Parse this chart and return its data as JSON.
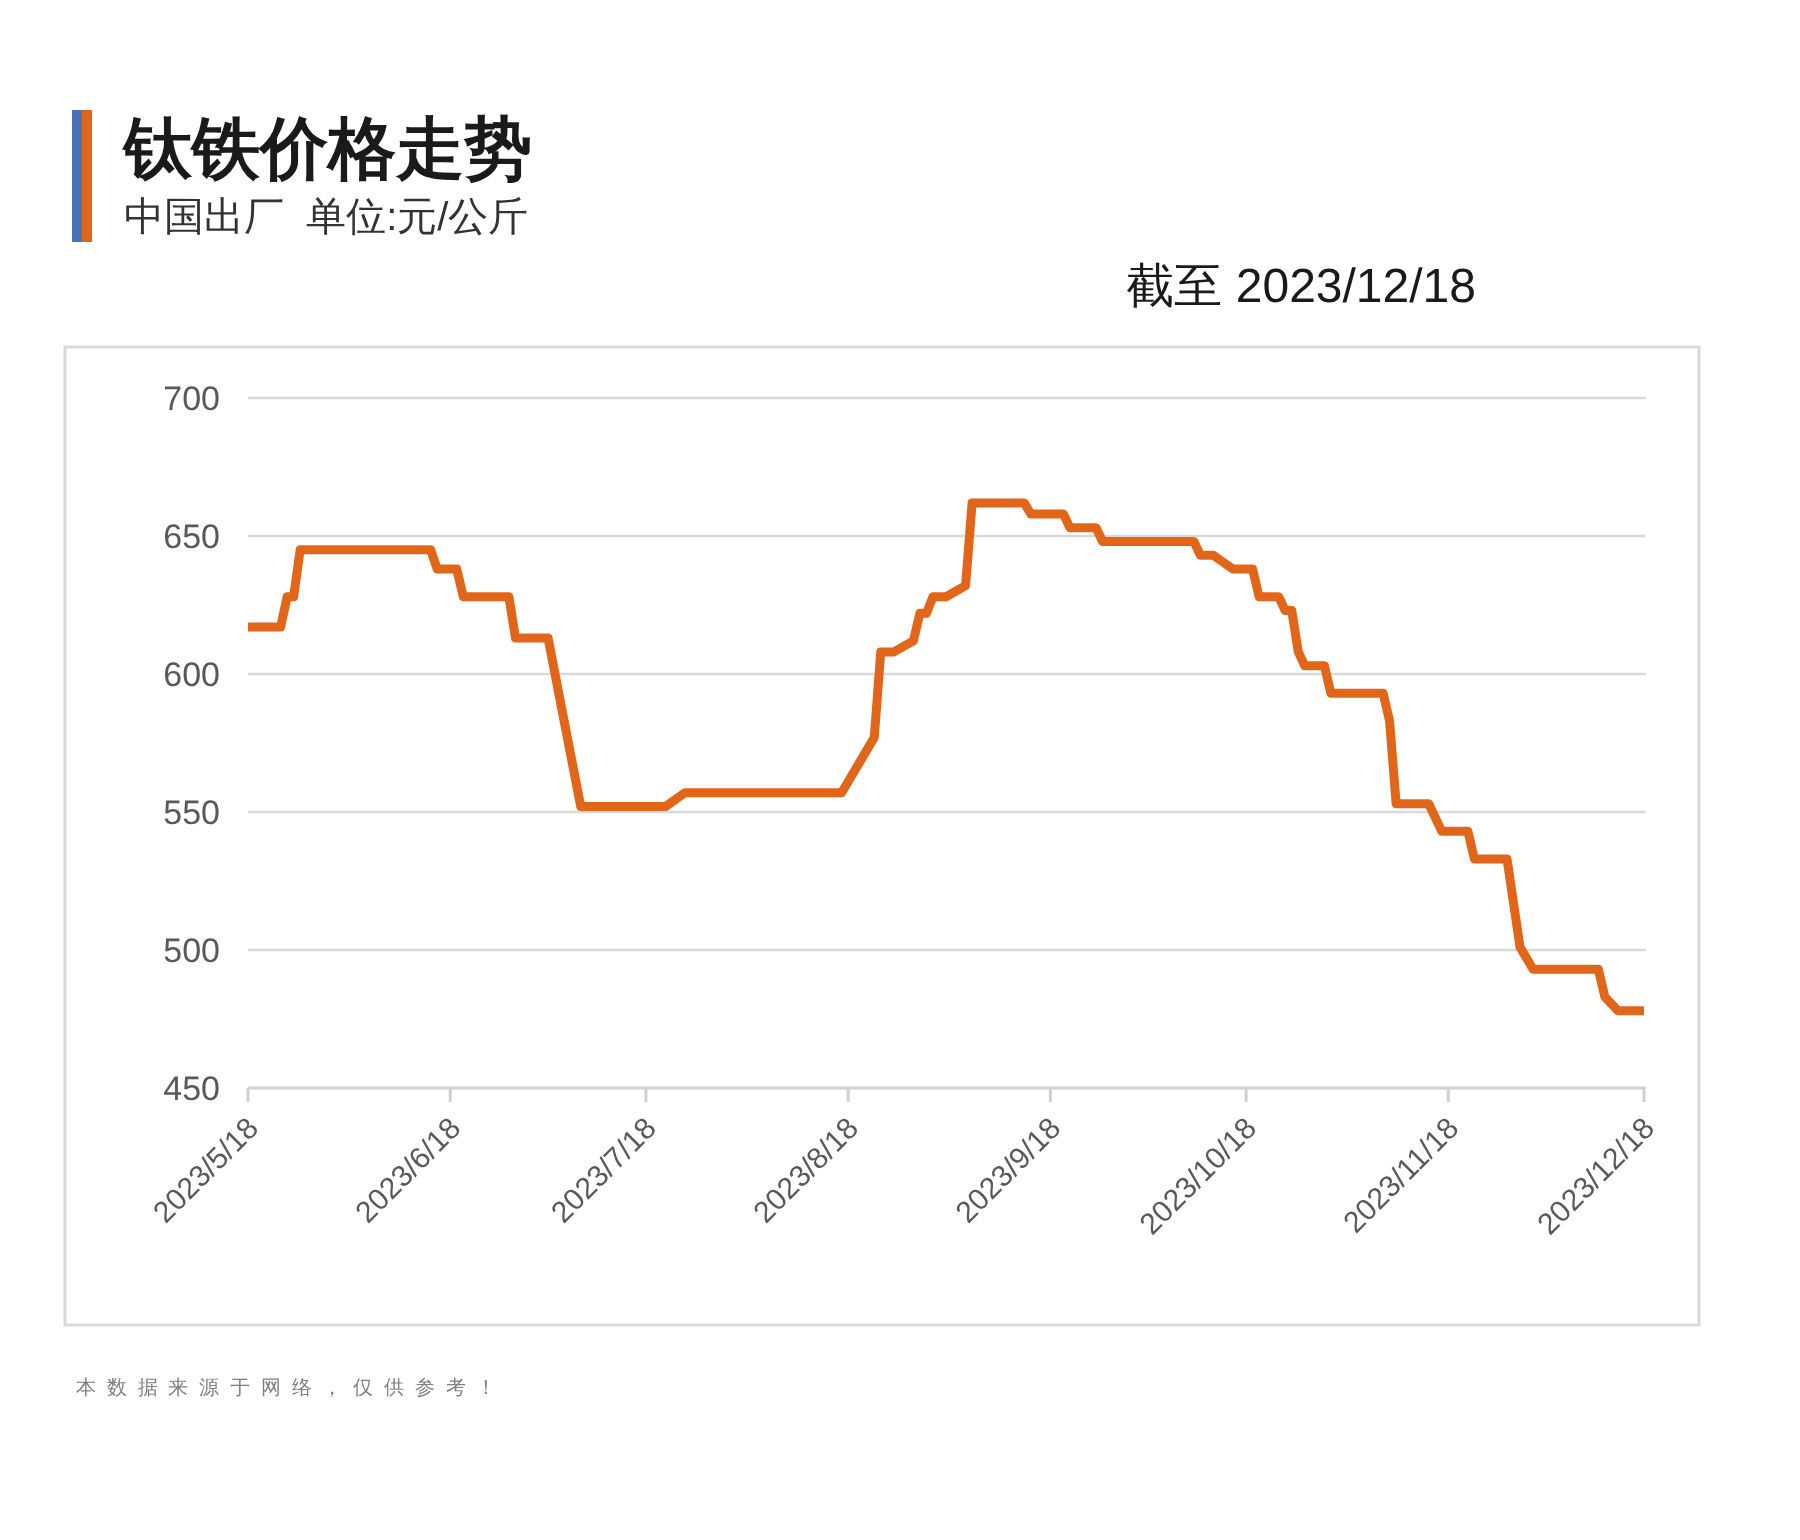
{
  "chart_data": {
    "type": "line",
    "title": "钛铁价格走势",
    "subtitle": "中国出厂  单位:元/公斤",
    "annotations": [
      "截至 2023/12/18",
      "本数据来源于网络，仅供参考！"
    ],
    "x": [
      "2023-05-18",
      "2023-05-23",
      "2023-05-24",
      "2023-05-25",
      "2023-05-26",
      "2023-06-15",
      "2023-06-16",
      "2023-06-19",
      "2023-06-20",
      "2023-06-27",
      "2023-06-28",
      "2023-07-03",
      "2023-07-08",
      "2023-07-21",
      "2023-07-24",
      "2023-08-17",
      "2023-08-22",
      "2023-08-23",
      "2023-08-25",
      "2023-08-28",
      "2023-08-29",
      "2023-08-30",
      "2023-08-31",
      "2023-09-02",
      "2023-09-05",
      "2023-09-06",
      "2023-09-14",
      "2023-09-15",
      "2023-09-20",
      "2023-09-21",
      "2023-09-25",
      "2023-09-26",
      "2023-10-10",
      "2023-10-11",
      "2023-10-13",
      "2023-10-16",
      "2023-10-19",
      "2023-10-20",
      "2023-10-23",
      "2023-10-24",
      "2023-10-25",
      "2023-10-26",
      "2023-10-27",
      "2023-10-30",
      "2023-10-31",
      "2023-11-08",
      "2023-11-09",
      "2023-11-10",
      "2023-11-15",
      "2023-11-17",
      "2023-11-21",
      "2023-11-22",
      "2023-11-27",
      "2023-11-29",
      "2023-12-01",
      "2023-12-11",
      "2023-12-12",
      "2023-12-14",
      "2023-12-18"
    ],
    "series": [
      {
        "color": "#e2661a",
        "values": [
          617,
          617,
          628,
          628,
          645,
          645,
          638,
          638,
          628,
          628,
          613,
          613,
          552,
          552,
          557,
          557,
          577,
          608,
          608,
          612,
          622,
          622,
          628,
          628,
          632,
          662,
          662,
          658,
          658,
          653,
          653,
          648,
          648,
          643,
          643,
          638,
          638,
          628,
          628,
          623,
          623,
          608,
          603,
          603,
          593,
          593,
          583,
          553,
          553,
          543,
          543,
          533,
          533,
          501,
          493,
          493,
          483,
          478,
          478
        ]
      }
    ],
    "xlim": [
      "2023-05-18",
      "2023-12-18"
    ],
    "xticks": [
      {
        "value": "2023-05-18",
        "label": "2023/5/18"
      },
      {
        "value": "2023-06-18",
        "label": "2023/6/18"
      },
      {
        "value": "2023-07-18",
        "label": "2023/7/18"
      },
      {
        "value": "2023-08-18",
        "label": "2023/8/18"
      },
      {
        "value": "2023-09-18",
        "label": "2023/9/18"
      },
      {
        "value": "2023-10-18",
        "label": "2023/10/18"
      },
      {
        "value": "2023-11-18",
        "label": "2023/11/18"
      },
      {
        "value": "2023-12-18",
        "label": "2023/12/18"
      }
    ],
    "ylim": [
      450,
      700
    ],
    "yticks": [
      450,
      500,
      550,
      600,
      650,
      700
    ],
    "grid": "y",
    "line_style": "solid"
  }
}
